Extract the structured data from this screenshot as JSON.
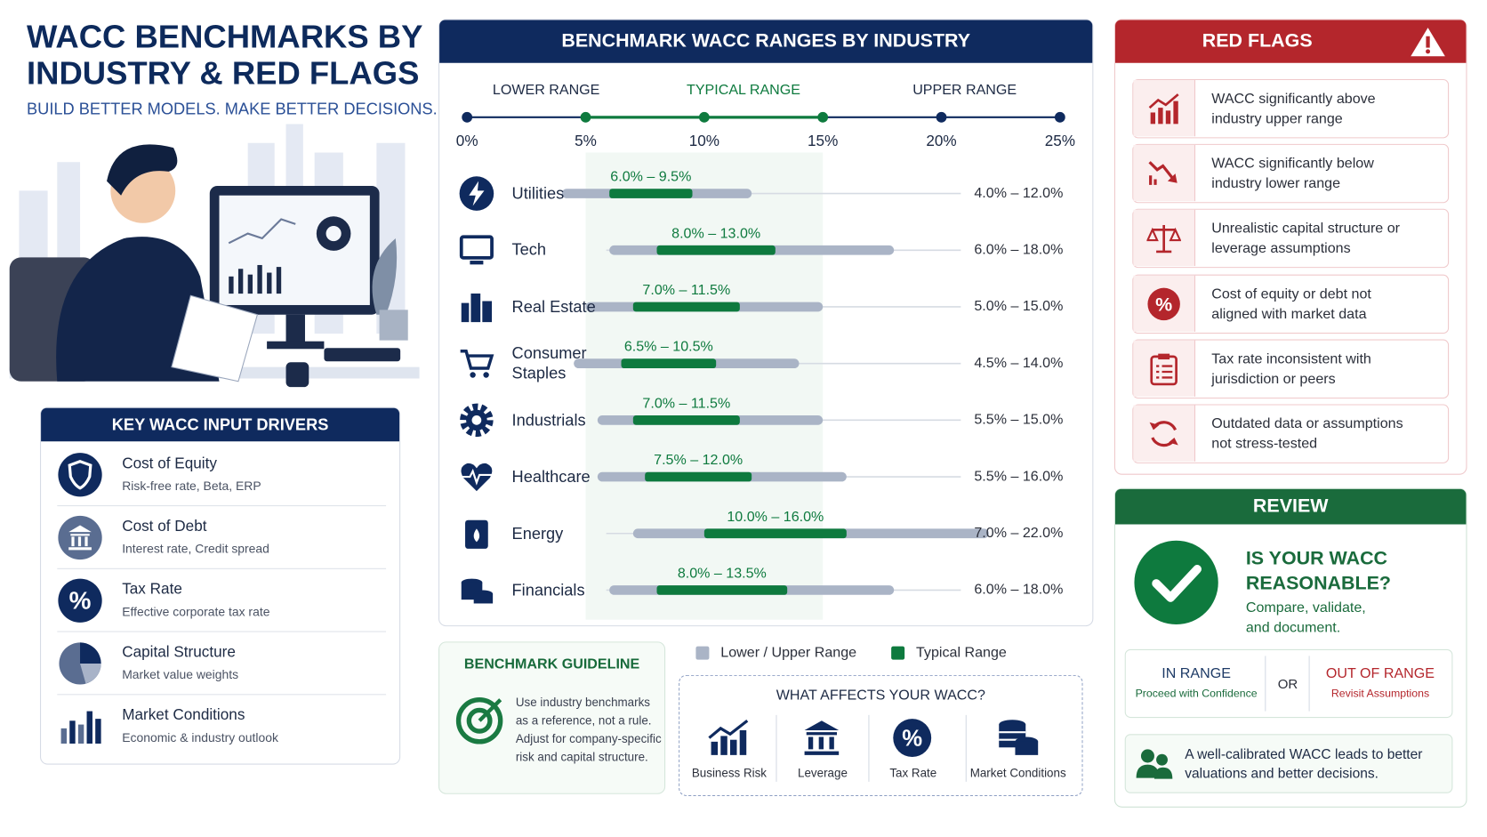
{
  "header": {
    "title": "WACC BENCHMARKS BY INDUSTRY & RED FLAGS",
    "subtitle": "BUILD BETTER MODELS. MAKE BETTER DECISIONS."
  },
  "drivers": {
    "title": "KEY WACC INPUT DRIVERS",
    "items": [
      {
        "title": "Cost of Equity",
        "text": "Risk-free rate, Beta, ERP"
      },
      {
        "title": "Cost of Debt",
        "text": "Interest rate, Credit spread"
      },
      {
        "title": "Tax Rate",
        "text": "Effective corporate tax rate"
      },
      {
        "title": "Capital Structure",
        "text": "Market value weights"
      },
      {
        "title": "Market Conditions",
        "text": "Economic & industry outlook"
      }
    ]
  },
  "chart_data": {
    "type": "range",
    "title": "BENCHMARK WACC RANGES BY INDUSTRY",
    "axis_labels": [
      "LOWER RANGE",
      "TYPICAL RANGE",
      "UPPER RANGE"
    ],
    "categories": [
      "Utilities",
      "Tech",
      "Real Estate",
      "Consumer Staples",
      "Industrials",
      "Healthcare",
      "Energy",
      "Financials"
    ],
    "series": [
      {
        "name": "Lower / Upper Range",
        "color": "#aab4c6",
        "low": [
          4.0,
          6.0,
          5.0,
          4.5,
          5.5,
          5.5,
          7.0,
          6.0
        ],
        "high": [
          12.0,
          18.0,
          15.0,
          14.0,
          15.0,
          16.0,
          22.0,
          18.0
        ],
        "value_labels": [
          "4.0% – 12.0%",
          "6.0% – 18.0%",
          "5.0% – 15.0%",
          "4.5% – 14.0%",
          "5.5% – 15.0%",
          "5.5% – 16.0%",
          "7.0% – 22.0%",
          "6.0% – 18.0%"
        ]
      },
      {
        "name": "Typical Range",
        "color": "#0e7a3e",
        "low": [
          6.0,
          8.0,
          7.0,
          6.5,
          7.0,
          7.5,
          10.0,
          8.0
        ],
        "high": [
          9.5,
          13.0,
          11.5,
          10.5,
          11.5,
          12.0,
          16.0,
          13.5
        ],
        "value_labels": [
          "6.0% – 9.5%",
          "8.0% – 13.0%",
          "7.0% – 11.5%",
          "6.5% – 10.5%",
          "7.0% – 11.5%",
          "7.5% – 12.0%",
          "10.0% – 16.0%",
          "8.0% – 13.5%"
        ]
      }
    ],
    "xlim": [
      0,
      25
    ],
    "xticks": [
      {
        "value": 0,
        "label": "0%"
      },
      {
        "value": 5,
        "label": "5%"
      },
      {
        "value": 10,
        "label": "10%"
      },
      {
        "value": 15,
        "label": "15%"
      },
      {
        "value": 20,
        "label": "20%"
      },
      {
        "value": 25,
        "label": "25%"
      }
    ]
  },
  "guideline": {
    "title": "BENCHMARK GUIDELINE",
    "text": "Use industry benchmarks as a reference, not a rule. Adjust for company-specific risk and capital structure."
  },
  "affects": {
    "title": "WHAT AFFECTS YOUR WACC?",
    "items": [
      "Business Risk",
      "Leverage",
      "Tax Rate",
      "Market Conditions"
    ]
  },
  "red_flags": {
    "title": "RED FLAGS",
    "items": [
      "WACC significantly above industry upper range",
      "WACC significantly below industry lower range",
      "Unrealistic capital structure or leverage assumptions",
      "Cost of equity or debt not aligned with market data",
      "Tax rate inconsistent with jurisdiction or peers",
      "Outdated data or assumptions not stress-tested"
    ]
  },
  "review": {
    "title": "REVIEW",
    "question": "IS YOUR WACC REASONABLE?",
    "text": "Compare, validate, and document.",
    "in_range": {
      "title": "IN RANGE",
      "text": "Proceed with Confidence"
    },
    "or": "OR",
    "out_of_range": {
      "title": "OUT OF RANGE",
      "text": "Revisit Assumptions"
    },
    "footer": "A well-calibrated WACC leads to better valuations and better decisions."
  }
}
